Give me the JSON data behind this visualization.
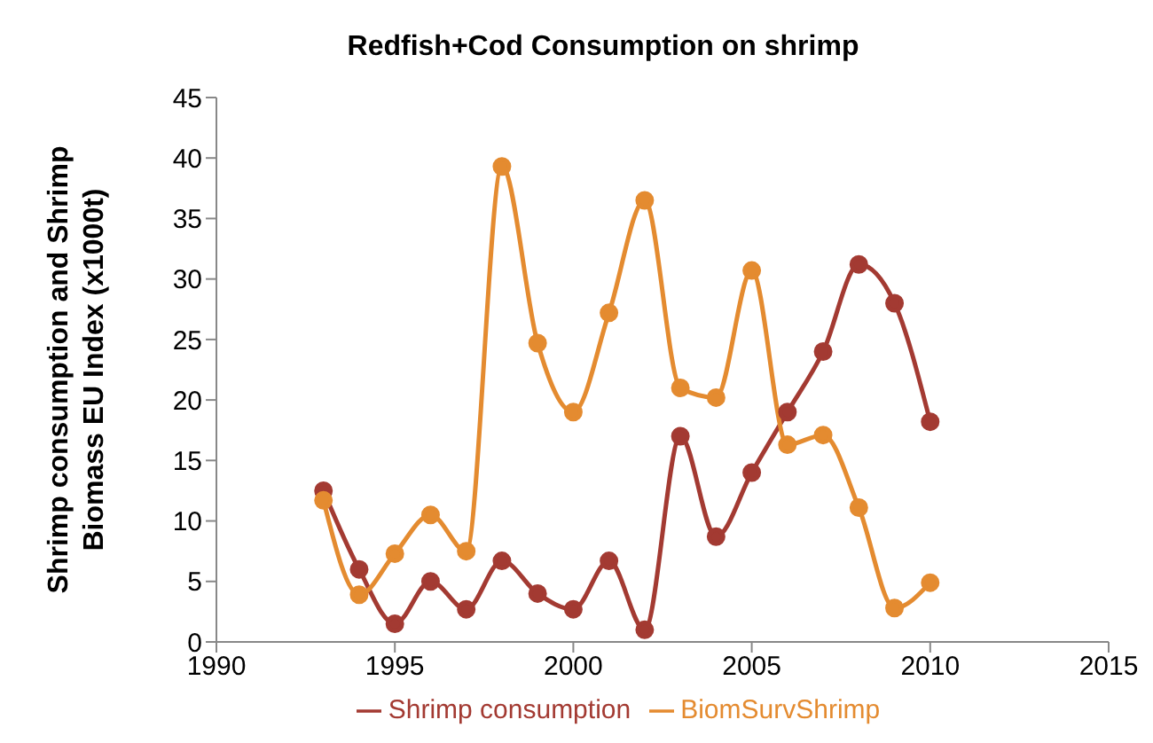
{
  "chart_data": {
    "type": "line",
    "title": "Redfish+Cod Consumption on shrimp",
    "ylabel": "Shrimp consumption and Shrimp Biomass EU Index (x1000t)",
    "x": [
      1993,
      1994,
      1995,
      1996,
      1997,
      1998,
      1999,
      2000,
      2001,
      2002,
      2003,
      2004,
      2005,
      2006,
      2007,
      2008,
      2009,
      2010
    ],
    "series": [
      {
        "name": "Shrimp consumption",
        "color": "#a33a32",
        "values": [
          12.5,
          6,
          1.5,
          5,
          2.7,
          6.7,
          4,
          2.7,
          6.7,
          1,
          17,
          8.7,
          14,
          19,
          24,
          31.2,
          28,
          18.2
        ]
      },
      {
        "name": "BiomSurvShrimp",
        "color": "#e48b30",
        "values": [
          11.7,
          3.9,
          7.3,
          10.5,
          7.5,
          39.3,
          24.7,
          19,
          27.2,
          36.5,
          21,
          20.2,
          30.7,
          16.3,
          17.1,
          11.1,
          2.8,
          4.9
        ]
      }
    ],
    "xlim": [
      1990,
      2015
    ],
    "xticks": [
      1990,
      1995,
      2000,
      2005,
      2010,
      2015
    ],
    "ylim": [
      0,
      45
    ],
    "yticks": [
      0,
      5,
      10,
      15,
      20,
      25,
      30,
      35,
      40,
      45
    ],
    "grid": false,
    "legend": "bottom",
    "marker": "circle",
    "line_style": "solid"
  }
}
